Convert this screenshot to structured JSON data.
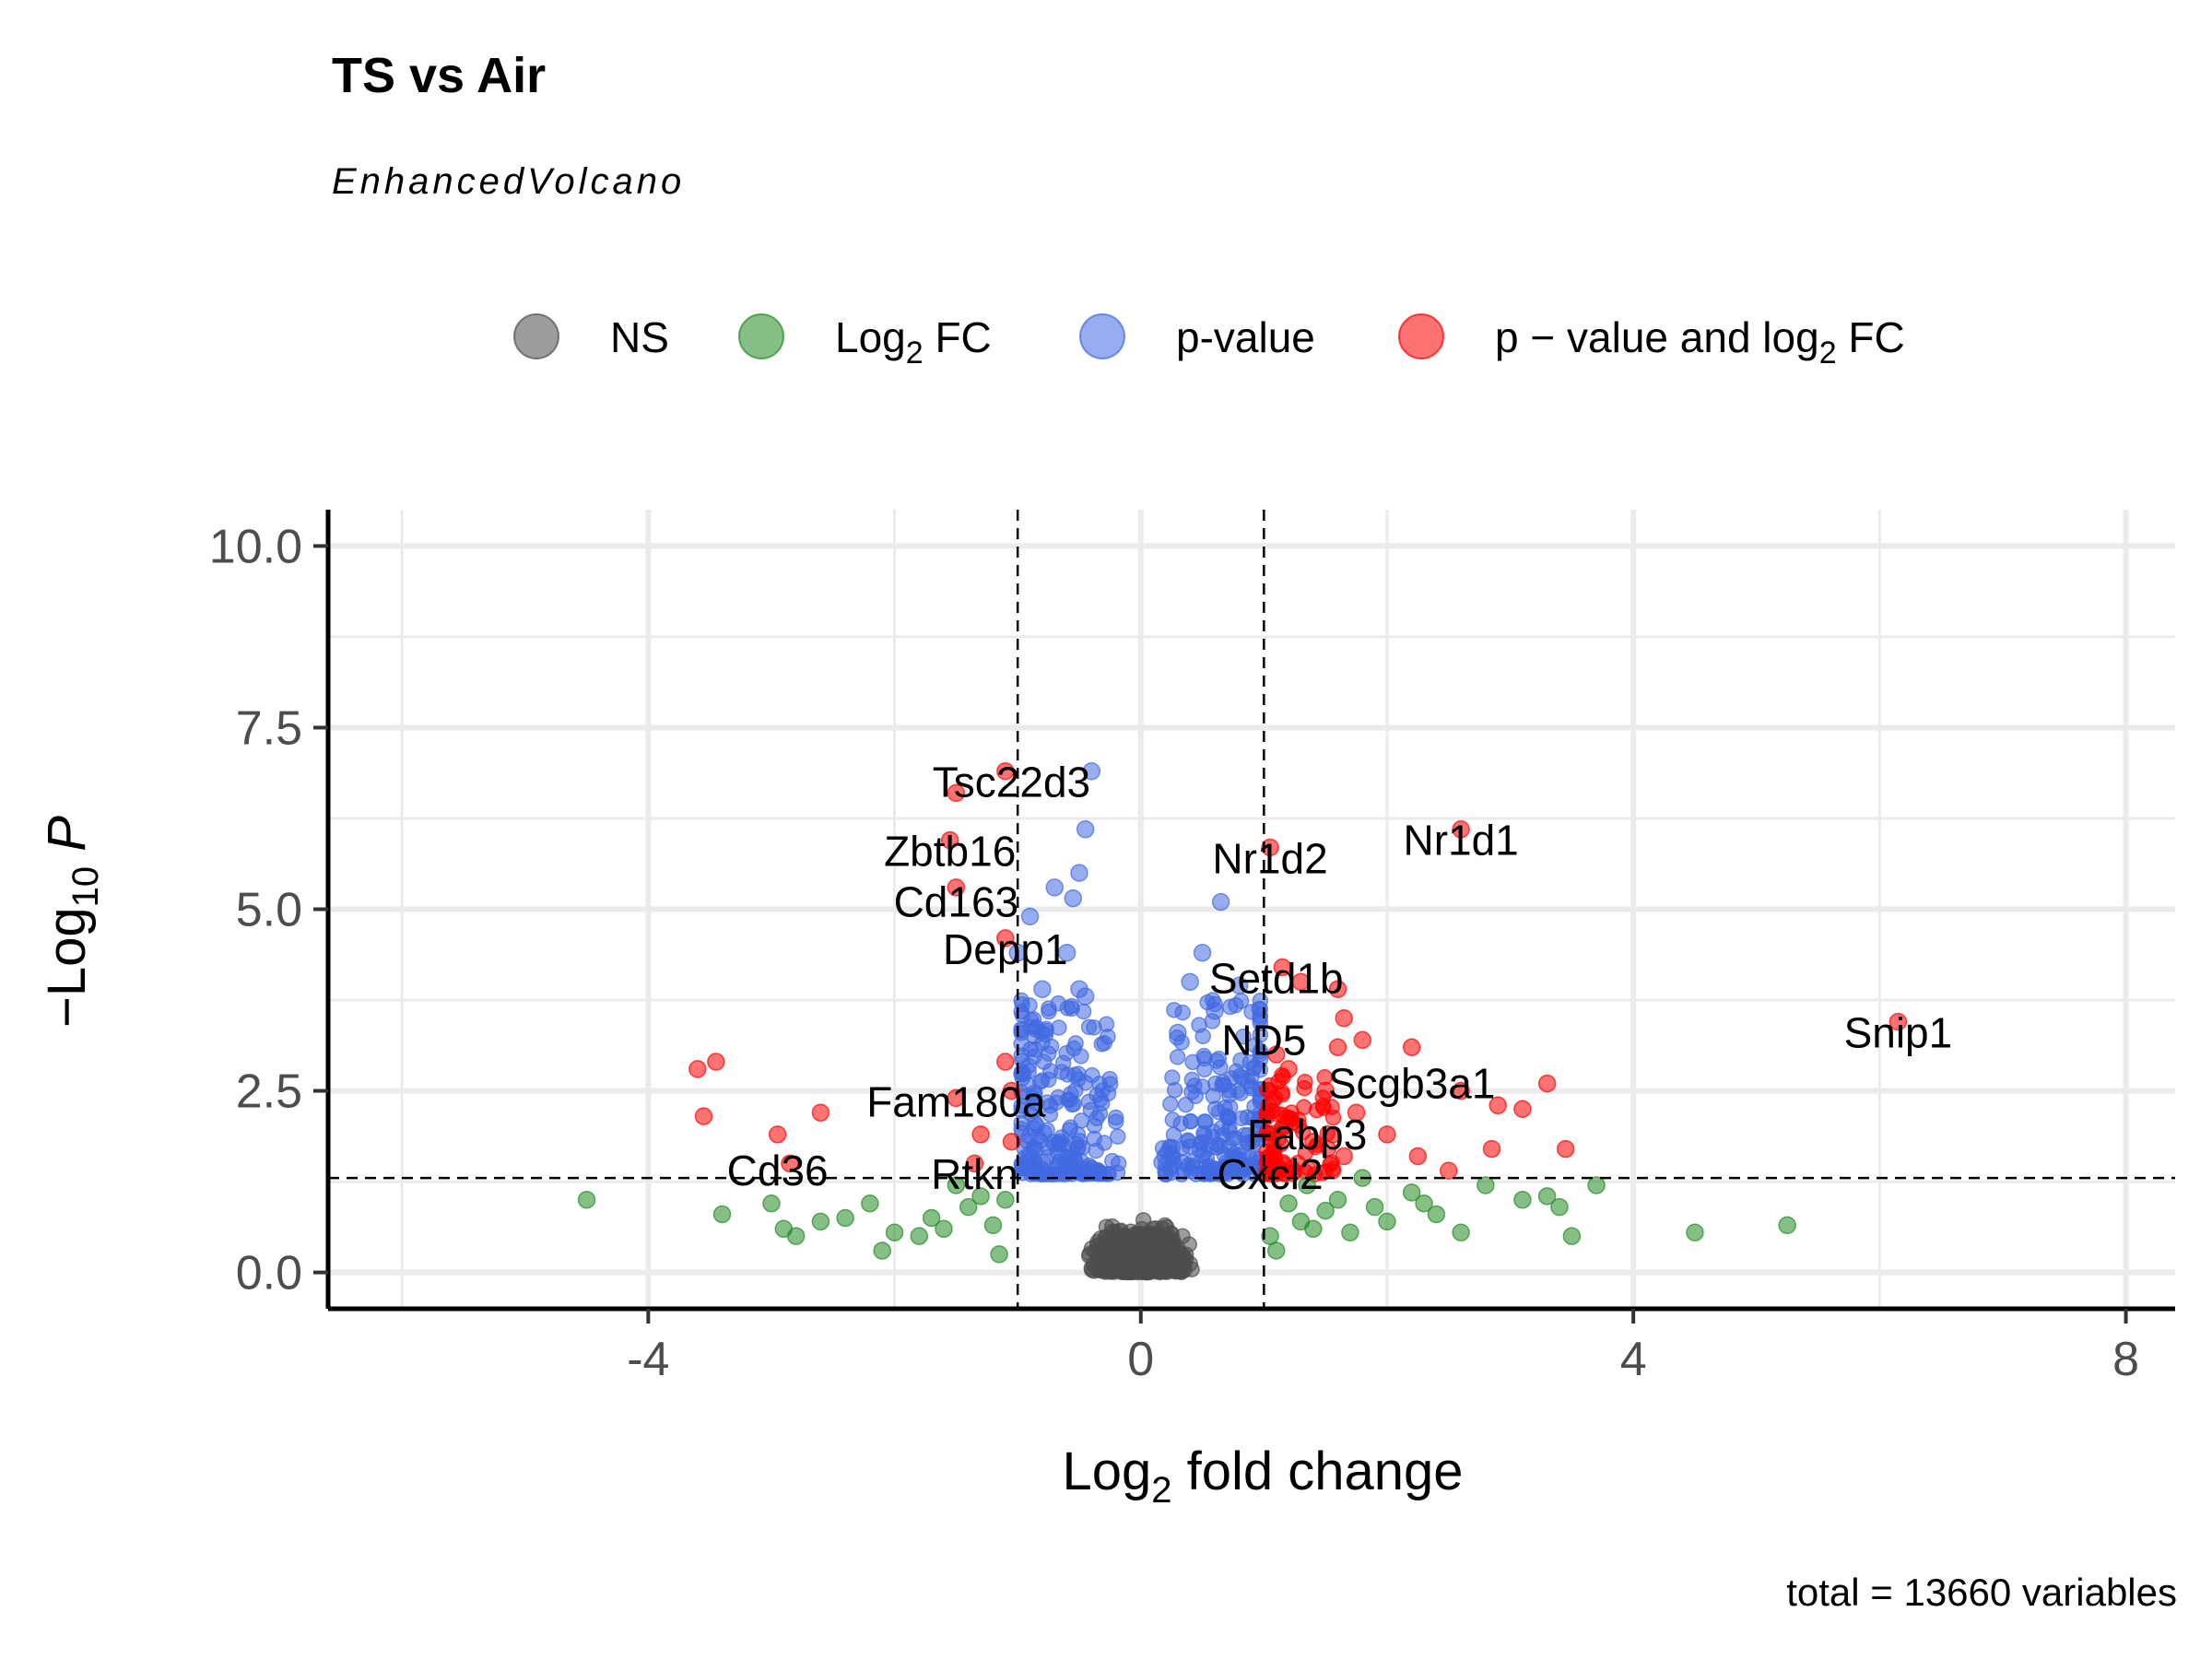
{
  "chart_data": {
    "type": "scatter",
    "title": "TS vs Air",
    "subtitle": "EnhancedVolcano",
    "xlabel": "Log2 fold change",
    "ylabel": "-Log10 P",
    "xlim": [
      -6.6,
      8.4
    ],
    "ylim": [
      -0.5,
      10.5
    ],
    "x_ticks": [
      "-4",
      "0",
      "4",
      "8"
    ],
    "x_tick_values": [
      -4,
      0,
      4,
      8
    ],
    "y_ticks": [
      "0.0",
      "2.5",
      "5.0",
      "7.5",
      "10.0"
    ],
    "y_tick_values": [
      0,
      2.5,
      5,
      7.5,
      10
    ],
    "grid": true,
    "legend_position": "top",
    "thresholds": {
      "log2fc": [
        -1,
        1
      ],
      "neg_log10_p": 1.3
    },
    "caption": "total = 13660 variables",
    "series": [
      {
        "name": "NS",
        "color": "#4d4d4d",
        "generated_cloud": true
      },
      {
        "name": "Log2 FC",
        "color": "#228b22",
        "points": [
          [
            -4.5,
            1.0
          ],
          [
            -3.4,
            0.8
          ],
          [
            -3.0,
            0.95
          ],
          [
            -2.9,
            0.6
          ],
          [
            -2.8,
            0.5
          ],
          [
            -2.6,
            0.7
          ],
          [
            -2.4,
            0.75
          ],
          [
            -2.2,
            0.95
          ],
          [
            -2.1,
            0.3
          ],
          [
            -2.0,
            0.55
          ],
          [
            -1.8,
            0.5
          ],
          [
            -1.7,
            0.75
          ],
          [
            -1.6,
            0.6
          ],
          [
            -1.5,
            1.2
          ],
          [
            -1.4,
            0.9
          ],
          [
            -1.3,
            1.05
          ],
          [
            -1.2,
            0.65
          ],
          [
            -1.15,
            0.25
          ],
          [
            -1.1,
            1.0
          ],
          [
            1.05,
            0.5
          ],
          [
            1.1,
            0.3
          ],
          [
            1.2,
            0.95
          ],
          [
            1.3,
            0.7
          ],
          [
            1.35,
            1.2
          ],
          [
            1.4,
            0.6
          ],
          [
            1.5,
            0.85
          ],
          [
            1.6,
            1.0
          ],
          [
            1.7,
            0.55
          ],
          [
            1.8,
            1.3
          ],
          [
            1.9,
            0.9
          ],
          [
            2.0,
            0.7
          ],
          [
            2.2,
            1.1
          ],
          [
            2.3,
            0.95
          ],
          [
            2.4,
            0.8
          ],
          [
            2.6,
            0.55
          ],
          [
            2.8,
            1.2
          ],
          [
            3.1,
            1.0
          ],
          [
            3.3,
            1.05
          ],
          [
            3.4,
            0.9
          ],
          [
            3.5,
            0.5
          ],
          [
            3.7,
            1.2
          ],
          [
            4.5,
            0.55
          ],
          [
            5.25,
            0.65
          ]
        ]
      },
      {
        "name": "p-value",
        "color": "#4169e1",
        "points": [
          [
            -0.4,
            6.9
          ],
          [
            -0.45,
            6.1
          ],
          [
            -0.5,
            5.5
          ],
          [
            -0.7,
            5.3
          ],
          [
            -0.55,
            5.15
          ],
          [
            -0.9,
            4.9
          ],
          [
            -1.0,
            4.4
          ],
          [
            -0.6,
            4.4
          ],
          [
            -0.8,
            3.9
          ],
          [
            -0.5,
            3.9
          ],
          [
            -0.45,
            3.8
          ],
          [
            0.65,
            5.1
          ],
          [
            0.5,
            4.4
          ],
          [
            0.4,
            4.0
          ],
          [
            0.8,
            3.95
          ],
          [
            0.6,
            3.6
          ],
          [
            0.3,
            3.3
          ]
        ]
      },
      {
        "name": "p-value and log2 FC",
        "color": "#ff0000",
        "points": [
          [
            -1.1,
            6.9
          ],
          [
            -1.5,
            6.6
          ],
          [
            -1.55,
            5.95
          ],
          [
            -1.5,
            5.3
          ],
          [
            -1.1,
            4.6
          ],
          [
            -3.6,
            2.8
          ],
          [
            -3.45,
            2.9
          ],
          [
            -3.55,
            2.15
          ],
          [
            -2.6,
            2.2
          ],
          [
            -2.95,
            1.9
          ],
          [
            -2.85,
            1.5
          ],
          [
            -1.5,
            2.4
          ],
          [
            -1.3,
            1.9
          ],
          [
            -1.05,
            1.8
          ],
          [
            -1.1,
            2.9
          ],
          [
            -1.05,
            2.5
          ],
          [
            -1.35,
            1.5
          ],
          [
            2.6,
            6.1
          ],
          [
            1.05,
            5.85
          ],
          [
            1.15,
            4.2
          ],
          [
            1.3,
            4.0
          ],
          [
            1.6,
            3.9
          ],
          [
            1.65,
            3.5
          ],
          [
            1.8,
            3.2
          ],
          [
            2.2,
            3.1
          ],
          [
            1.6,
            3.1
          ],
          [
            1.1,
            3.0
          ],
          [
            1.2,
            2.8
          ],
          [
            2.6,
            2.5
          ],
          [
            2.9,
            2.3
          ],
          [
            3.1,
            2.25
          ],
          [
            3.3,
            2.6
          ],
          [
            1.5,
            2.5
          ],
          [
            1.75,
            2.2
          ],
          [
            2.0,
            1.9
          ],
          [
            2.25,
            1.6
          ],
          [
            2.5,
            1.4
          ],
          [
            2.85,
            1.7
          ],
          [
            3.45,
            1.7
          ],
          [
            1.4,
            1.8
          ],
          [
            1.65,
            1.6
          ],
          [
            6.15,
            3.45
          ]
        ]
      }
    ],
    "labels": [
      {
        "text": "Tsc22d3",
        "x": -1.05,
        "y": 6.75
      },
      {
        "text": "Zbtb16",
        "x": -1.55,
        "y": 5.8
      },
      {
        "text": "Cd163",
        "x": -1.5,
        "y": 5.1
      },
      {
        "text": "Depp1",
        "x": -1.1,
        "y": 4.45
      },
      {
        "text": "Nr1d2",
        "x": 1.05,
        "y": 5.7
      },
      {
        "text": "Nr1d1",
        "x": 2.6,
        "y": 5.95
      },
      {
        "text": "Setd1b",
        "x": 1.1,
        "y": 4.05
      },
      {
        "text": "ND5",
        "x": 1.0,
        "y": 3.2
      },
      {
        "text": "Scgb3a1",
        "x": 2.2,
        "y": 2.6
      },
      {
        "text": "Fabp3",
        "x": 1.35,
        "y": 1.9
      },
      {
        "text": "Cxcl2",
        "x": 1.05,
        "y": 1.35
      },
      {
        "text": "Fam180a",
        "x": -1.5,
        "y": 2.35
      },
      {
        "text": "Rtkn",
        "x": -1.35,
        "y": 1.35
      },
      {
        "text": "Cd36",
        "x": -2.95,
        "y": 1.4
      },
      {
        "text": "Snip1",
        "x": 6.15,
        "y": 3.3
      }
    ]
  }
}
